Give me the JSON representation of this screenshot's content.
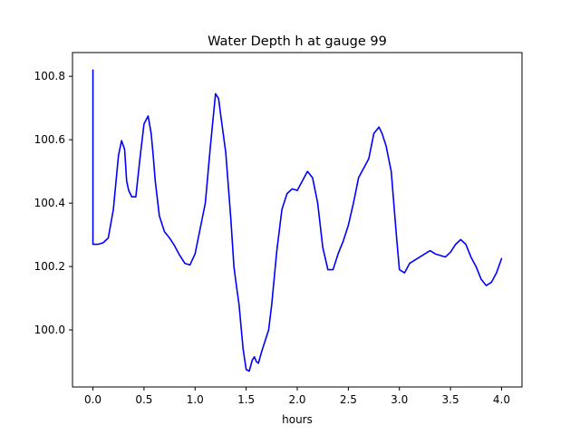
{
  "chart_data": {
    "type": "line",
    "title": "Water Depth h at gauge 99",
    "xlabel": "hours",
    "ylabel": "",
    "xlim": [
      -0.2,
      4.2
    ],
    "ylim": [
      99.82,
      100.875
    ],
    "xticks": [
      0.0,
      0.5,
      1.0,
      1.5,
      2.0,
      2.5,
      3.0,
      3.5,
      4.0
    ],
    "xtick_labels": [
      "0.0",
      "0.5",
      "1.0",
      "1.5",
      "2.0",
      "2.5",
      "3.0",
      "3.5",
      "4.0"
    ],
    "yticks": [
      100.0,
      100.2,
      100.4,
      100.6,
      100.8
    ],
    "ytick_labels": [
      "100.0",
      "100.2",
      "100.4",
      "100.6",
      "100.8"
    ],
    "grid": false,
    "series": [
      {
        "color": "#0000ff",
        "x": [
          0.0,
          0.0,
          0.0,
          0.05,
          0.1,
          0.15,
          0.2,
          0.25,
          0.28,
          0.31,
          0.33,
          0.35,
          0.38,
          0.42,
          0.46,
          0.5,
          0.54,
          0.57,
          0.59,
          0.61,
          0.65,
          0.7,
          0.75,
          0.8,
          0.85,
          0.9,
          0.95,
          1.0,
          1.05,
          1.1,
          1.15,
          1.2,
          1.23,
          1.25,
          1.3,
          1.35,
          1.38,
          1.4,
          1.43,
          1.47,
          1.5,
          1.53,
          1.56,
          1.58,
          1.6,
          1.62,
          1.65,
          1.68,
          1.72,
          1.75,
          1.8,
          1.85,
          1.9,
          1.95,
          2.0,
          2.05,
          2.1,
          2.15,
          2.2,
          2.25,
          2.3,
          2.35,
          2.4,
          2.45,
          2.5,
          2.55,
          2.6,
          2.65,
          2.7,
          2.75,
          2.8,
          2.83,
          2.87,
          2.92,
          2.97,
          3.0,
          3.05,
          3.1,
          3.15,
          3.2,
          3.25,
          3.3,
          3.35,
          3.4,
          3.45,
          3.5,
          3.55,
          3.6,
          3.65,
          3.7,
          3.75,
          3.8,
          3.85,
          3.9,
          3.95,
          4.0
        ],
        "y": [
          100.27,
          100.82,
          100.27,
          100.27,
          100.275,
          100.29,
          100.38,
          100.55,
          100.597,
          100.57,
          100.47,
          100.44,
          100.42,
          100.42,
          100.54,
          100.65,
          100.675,
          100.62,
          100.55,
          100.47,
          100.36,
          100.31,
          100.29,
          100.265,
          100.235,
          100.21,
          100.205,
          100.24,
          100.32,
          100.4,
          100.58,
          100.745,
          100.73,
          100.68,
          100.56,
          100.35,
          100.2,
          100.15,
          100.08,
          99.94,
          99.875,
          99.87,
          99.905,
          99.915,
          99.9,
          99.895,
          99.93,
          99.96,
          100.0,
          100.08,
          100.25,
          100.38,
          100.43,
          100.445,
          100.44,
          100.47,
          100.5,
          100.48,
          100.4,
          100.26,
          100.19,
          100.19,
          100.24,
          100.28,
          100.33,
          100.4,
          100.48,
          100.51,
          100.54,
          100.62,
          100.64,
          100.62,
          100.58,
          100.5,
          100.3,
          100.19,
          100.18,
          100.21,
          100.22,
          100.23,
          100.24,
          100.25,
          100.24,
          100.235,
          100.23,
          100.245,
          100.27,
          100.285,
          100.27,
          100.23,
          100.2,
          100.16,
          100.14,
          100.15,
          100.18,
          100.225
        ]
      }
    ]
  }
}
